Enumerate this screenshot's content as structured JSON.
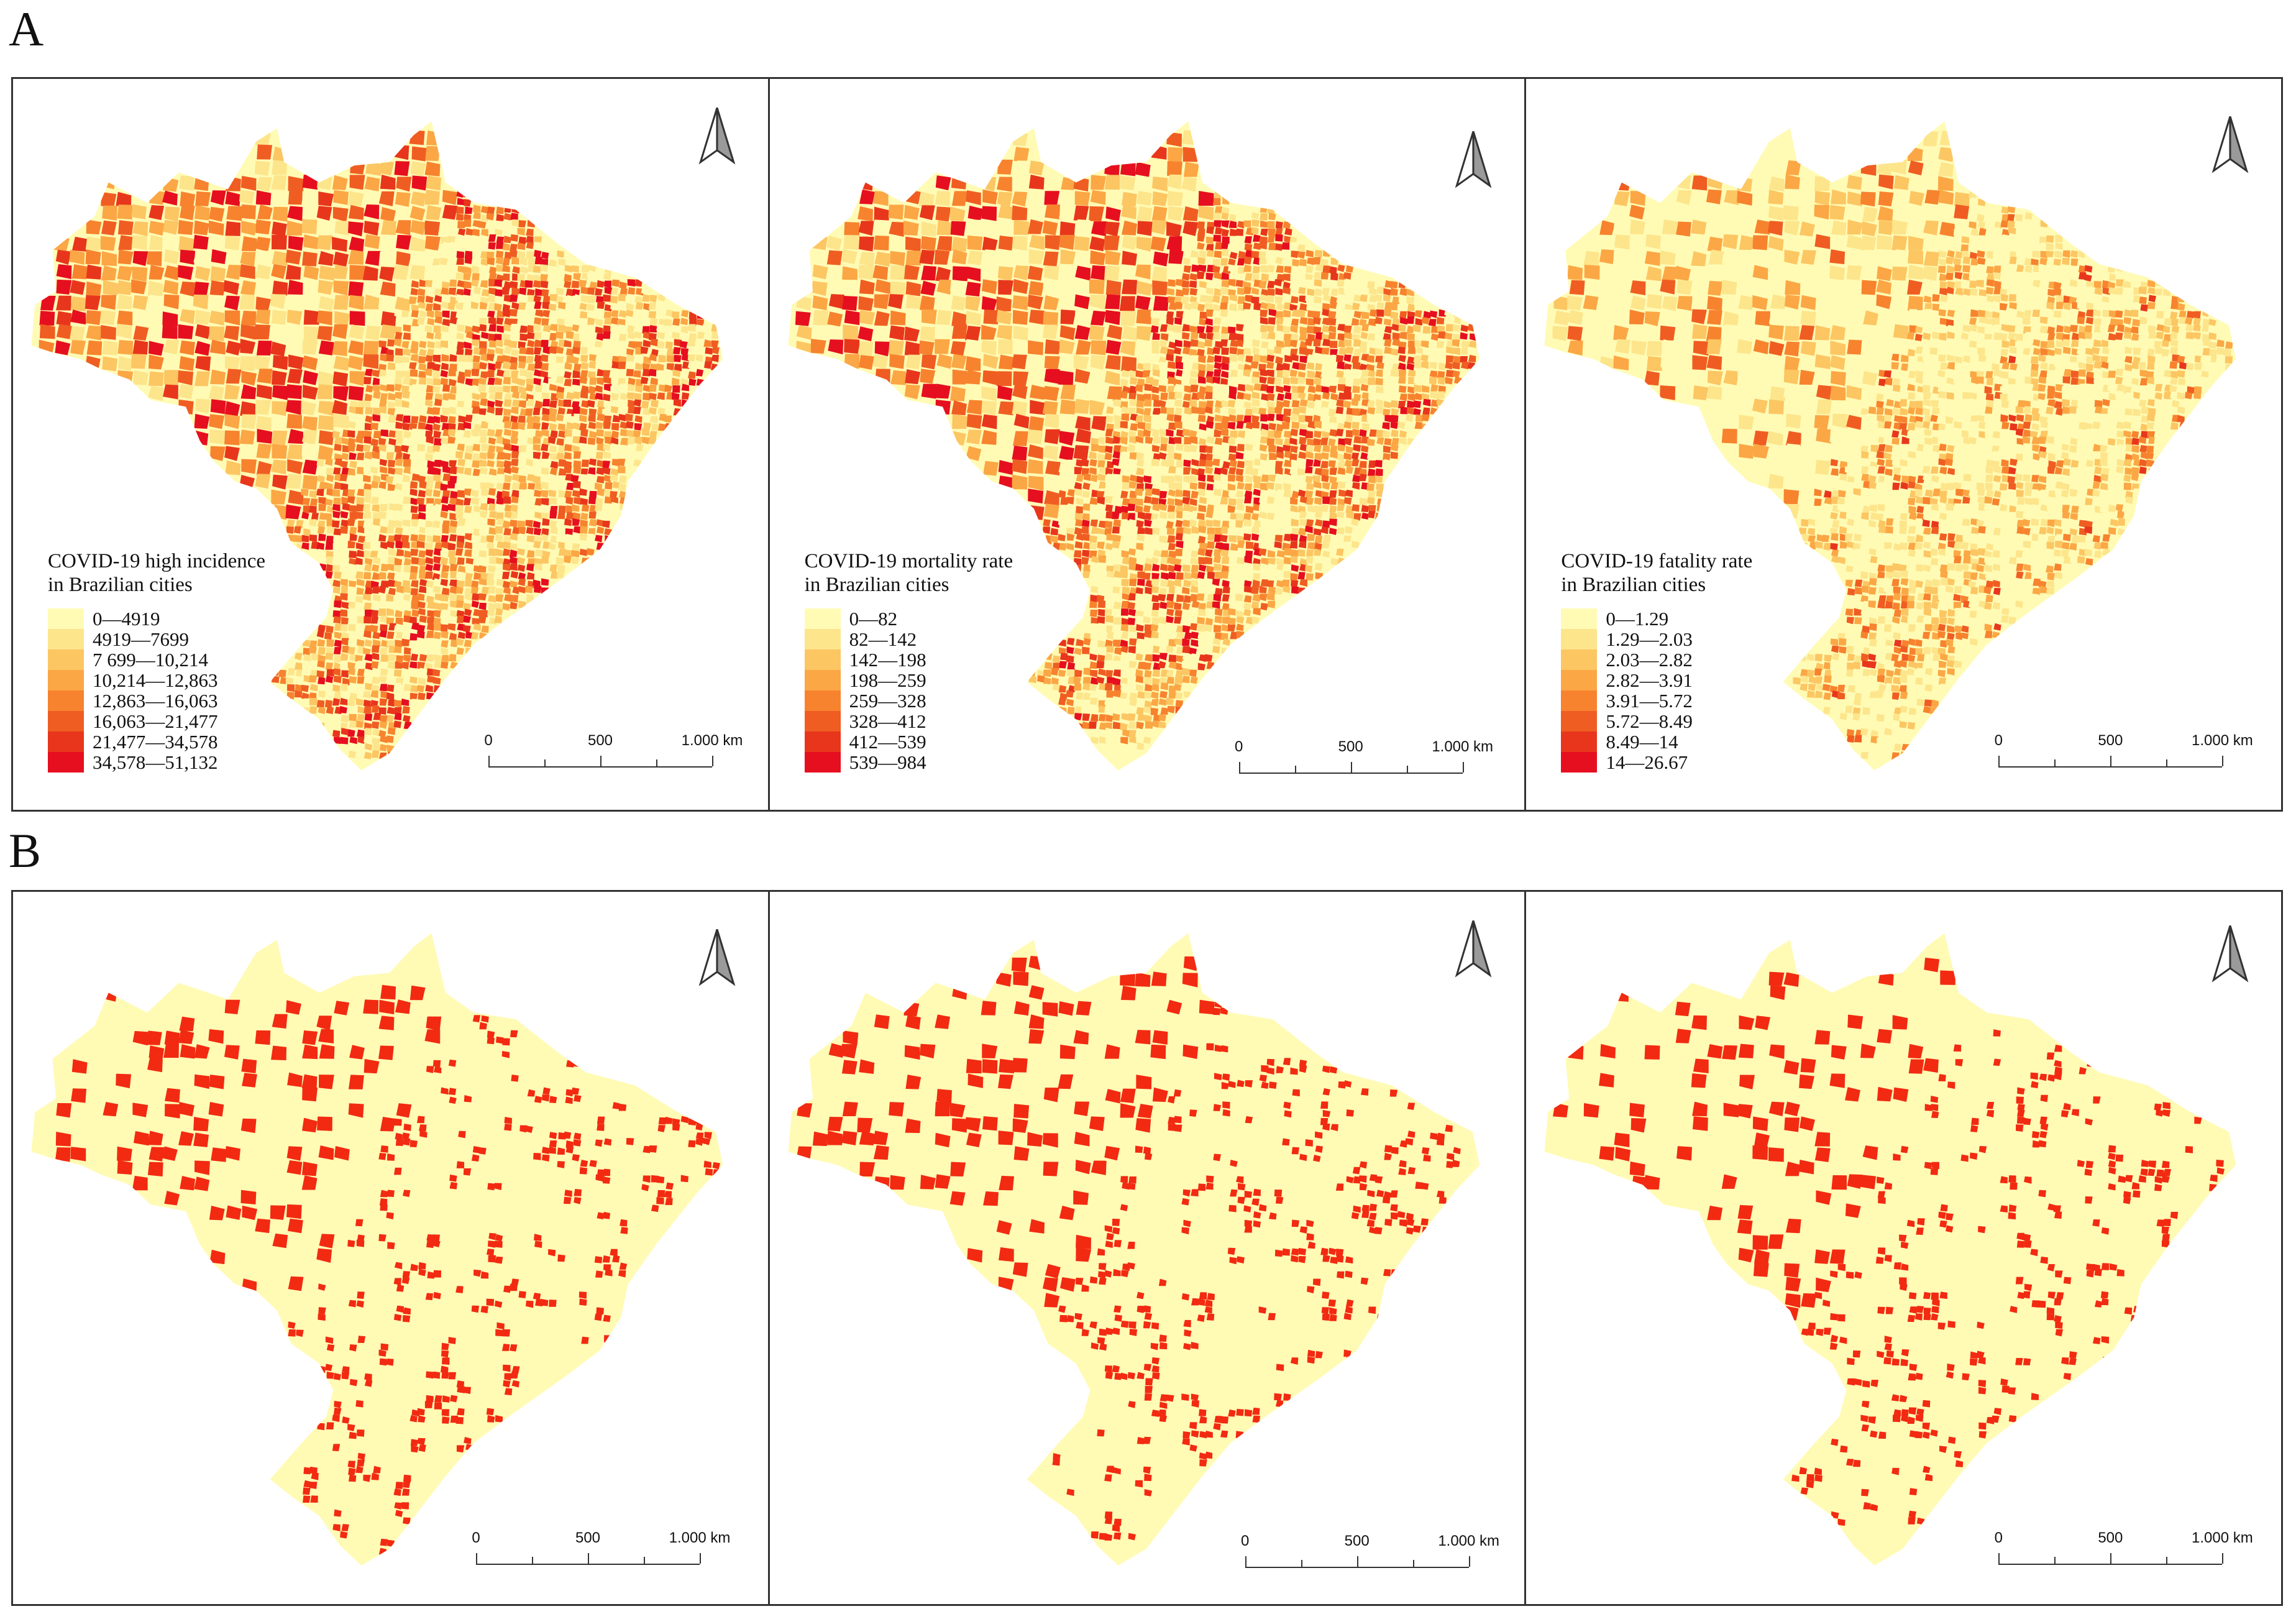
{
  "sections": [
    {
      "letter": "A",
      "panels": [
        {
          "legend_title": [
            "COVID-19 high incidence",
            "in Brazilian cities"
          ],
          "legend": [
            {
              "label": "0—4919",
              "color": "#fffbb5"
            },
            {
              "label": "4919—7699",
              "color": "#fde58c"
            },
            {
              "label": "7 699—10,214",
              "color": "#fcc663"
            },
            {
              "label": "10,214—12,863",
              "color": "#fba745"
            },
            {
              "label": "12,863—16,063",
              "color": "#f7832f"
            },
            {
              "label": "16,063—21,477",
              "color": "#f05d22"
            },
            {
              "label": "21,477—34,578",
              "color": "#e8361c"
            },
            {
              "label": "34,578—51,132",
              "color": "#e60f1f"
            }
          ],
          "scale": [
            "0",
            "500",
            "1.000 km"
          ]
        },
        {
          "legend_title": [
            "COVID-19 mortality rate",
            "in Brazilian cities"
          ],
          "legend": [
            {
              "label": "0—82",
              "color": "#fffbb5"
            },
            {
              "label": "82—142",
              "color": "#fde58c"
            },
            {
              "label": "142—198",
              "color": "#fcc663"
            },
            {
              "label": "198—259",
              "color": "#fba745"
            },
            {
              "label": "259—328",
              "color": "#f7832f"
            },
            {
              "label": "328—412",
              "color": "#f05d22"
            },
            {
              "label": "412—539",
              "color": "#e8361c"
            },
            {
              "label": "539—984",
              "color": "#e60f1f"
            }
          ],
          "scale": [
            "0",
            "500",
            "1.000 km"
          ]
        },
        {
          "legend_title": [
            "COVID-19 fatality rate",
            "in Brazilian cities"
          ],
          "legend": [
            {
              "label": "0—1.29",
              "color": "#fffbb5"
            },
            {
              "label": "1.29—2.03",
              "color": "#fde58c"
            },
            {
              "label": "2.03—2.82",
              "color": "#fcc663"
            },
            {
              "label": "2.82—3.91",
              "color": "#fba745"
            },
            {
              "label": "3.91—5.72",
              "color": "#f7832f"
            },
            {
              "label": "5.72—8.49",
              "color": "#f05d22"
            },
            {
              "label": "8.49—14",
              "color": "#e8361c"
            },
            {
              "label": "14—26.67",
              "color": "#e60f1f"
            }
          ],
          "scale": [
            "0",
            "500",
            "1.000 km"
          ]
        }
      ]
    },
    {
      "letter": "B",
      "panels": [
        {
          "scale": [
            "0",
            "500",
            "1.000 km"
          ]
        },
        {
          "scale": [
            "0",
            "500",
            "1.000 km"
          ]
        },
        {
          "scale": [
            "0",
            "500",
            "1.000 km"
          ]
        }
      ]
    }
  ],
  "colors": {
    "base_fill": "#fffbb5",
    "highlight": "#f22a12",
    "palette": [
      "#fffbb5",
      "#fde58c",
      "#fcc663",
      "#fba745",
      "#f7832f",
      "#f05d22",
      "#e8361c",
      "#e60f1f"
    ]
  },
  "icons": {
    "north_arrow": "north-arrow-icon"
  }
}
